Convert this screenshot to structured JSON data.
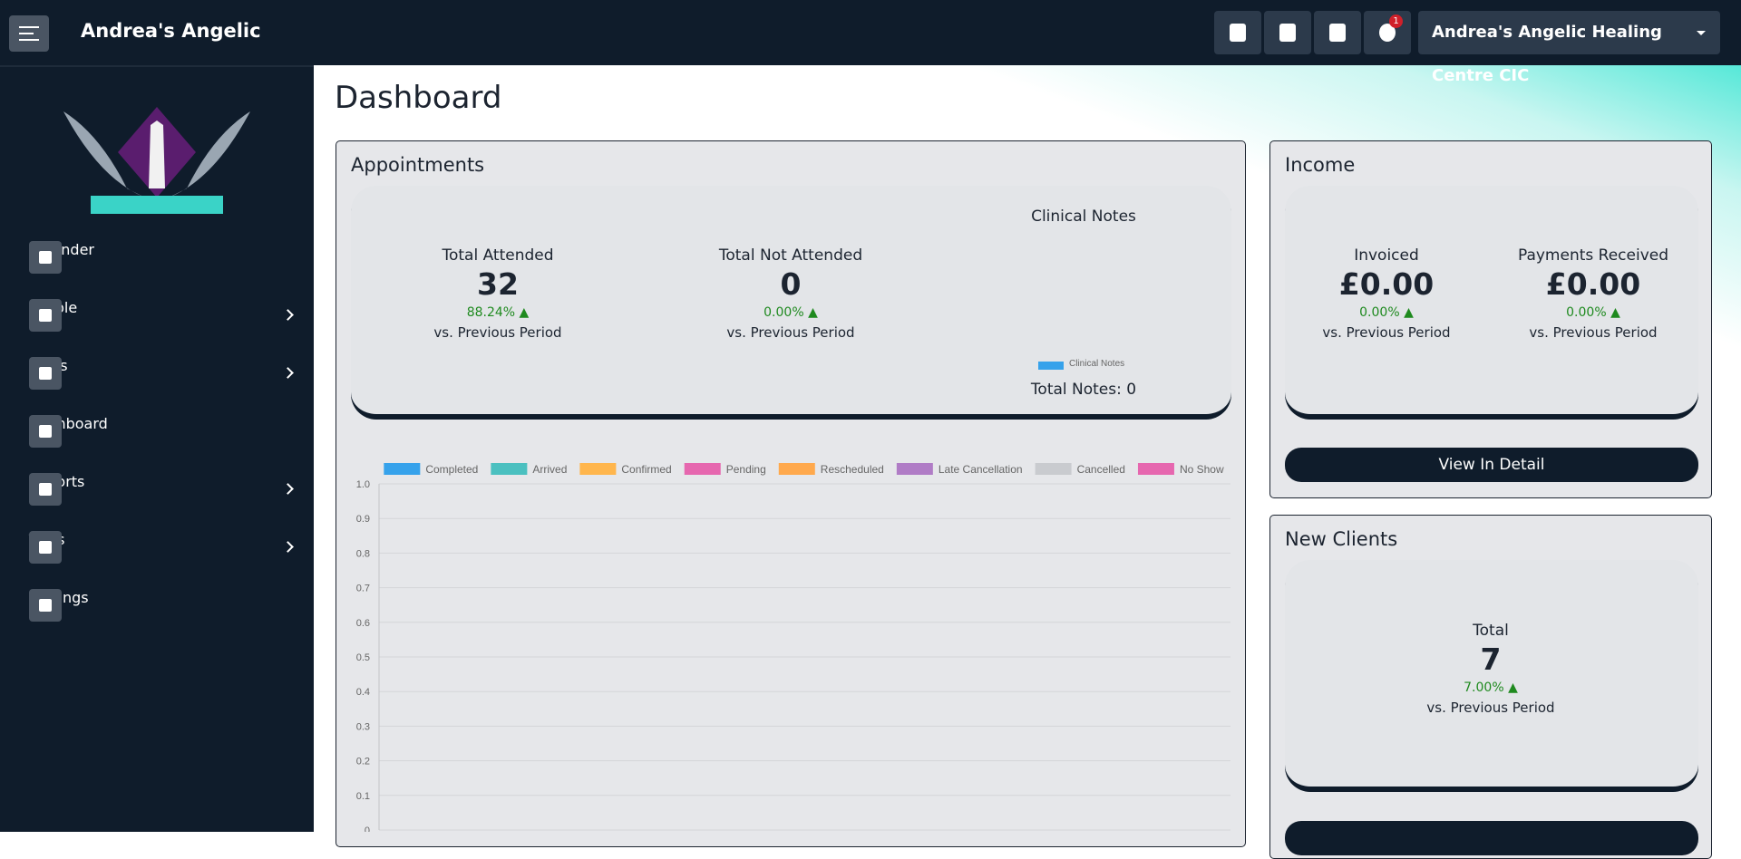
{
  "header": {
    "brand": "Andrea's Angelic",
    "notification_count": 1,
    "organisation": "Andrea's Angelic Healing Centre CIC"
  },
  "sidebar": {
    "items": [
      {
        "label": "Calender",
        "submenu": false
      },
      {
        "label": "People",
        "submenu": true
      },
      {
        "label": "Sales",
        "submenu": true
      },
      {
        "label": "Dashboard",
        "submenu": false
      },
      {
        "label": "Reports",
        "submenu": true
      },
      {
        "label": "Tools",
        "submenu": true
      },
      {
        "label": "Settings",
        "submenu": false
      }
    ]
  },
  "page_title": "Dashboard",
  "appointments": {
    "title": "Appointments",
    "stats": [
      {
        "label": "Total Attended",
        "value": 32,
        "change": "88.24%",
        "period": "vs. Previous Period"
      },
      {
        "label": "Total Not Attended",
        "value": 0,
        "change": "0.00%",
        "period": "vs. Previous Period"
      }
    ],
    "clinical_notes": {
      "title": "Clinical Notes",
      "legend": "Clinical Notes",
      "total": "Total Notes: 0"
    }
  },
  "income": {
    "title": "Income",
    "stats": [
      {
        "label": "Invoiced",
        "value": "£0.00",
        "change": "0.00%",
        "period": "vs. Previous Period"
      },
      {
        "label": "Payments Received",
        "value": "£0.00",
        "change": "0.00%",
        "period": "vs. Previous Period"
      }
    ],
    "button": "View In Detail"
  },
  "new_clients": {
    "title": "New Clients",
    "stats": [
      {
        "label": "Total",
        "value": 7,
        "change": "7.00%",
        "period": "vs. Previous Period"
      }
    ]
  },
  "chart_data": {
    "type": "bar",
    "categories": [],
    "series": [
      {
        "name": "Completed",
        "color": "#36a2eb",
        "values": []
      },
      {
        "name": "Arrived",
        "color": "#4bc0c0",
        "values": []
      },
      {
        "name": "Confirmed",
        "color": "#ffb64d",
        "values": []
      },
      {
        "name": "Pending",
        "color": "#e667af",
        "values": []
      },
      {
        "name": "Rescheduled",
        "color": "#ffa94d",
        "values": []
      },
      {
        "name": "Late Cancellation",
        "color": "#b07cc6",
        "values": []
      },
      {
        "name": "Cancelled",
        "color": "#c9cbcf",
        "values": []
      },
      {
        "name": "No Show",
        "color": "#e667af",
        "values": []
      }
    ],
    "ylim": [
      0,
      1
    ],
    "yticks": [
      0,
      0.1,
      0.2,
      0.3,
      0.4,
      0.5,
      0.6,
      0.7,
      0.8,
      0.9,
      {
        "value": 1,
        "label": "1.0"
      }
    ],
    "grid": true
  }
}
